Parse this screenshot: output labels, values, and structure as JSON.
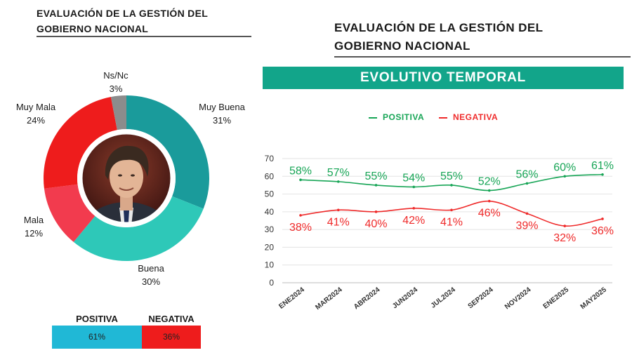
{
  "left_panel": {
    "title_line1": "EVALUACIÓN DE LA GESTIÓN DEL",
    "title_line2": "GOBIERNO NACIONAL",
    "donut": {
      "type": "pie",
      "slices": [
        {
          "label": "Muy Buena",
          "value": 31,
          "value_label": "31%",
          "color": "#1a9b9b"
        },
        {
          "label": "Buena",
          "value": 30,
          "value_label": "30%",
          "color": "#2ec8b8"
        },
        {
          "label": "Mala",
          "value": 12,
          "value_label": "12%",
          "color": "#f23b4e"
        },
        {
          "label": "Muy Mala",
          "value": 24,
          "value_label": "24%",
          "color": "#ee1c1c"
        },
        {
          "label": "Ns/Nc",
          "value": 3,
          "value_label": "3%",
          "color": "#8c8c8c"
        }
      ]
    },
    "summary": {
      "positiva_label": "POSITIVA",
      "positiva_value": "61%",
      "negativa_label": "NEGATIVA",
      "negativa_value": "36%",
      "positiva_color": "#20b8d6",
      "negativa_color": "#ee1c1c"
    }
  },
  "right_panel": {
    "title_line1": "EVALUACIÓN DE LA GESTIÓN DEL",
    "title_line2": "GOBIERNO NACIONAL",
    "banner": "EVOLUTIVO TEMPORAL"
  },
  "chart_data": {
    "type": "line",
    "categories": [
      "ENE2024",
      "MAR2024",
      "ABR2024",
      "JUN2024",
      "JUL2024",
      "SEP2024",
      "NOV2024",
      "ENE2025",
      "MAY2025"
    ],
    "series": [
      {
        "name": "POSITIVA",
        "values": [
          58,
          57,
          55,
          54,
          55,
          52,
          56,
          60,
          61
        ],
        "labels": [
          "58%",
          "57%",
          "55%",
          "54%",
          "55%",
          "52%",
          "56%",
          "60%",
          "61%"
        ],
        "color": "#17a556"
      },
      {
        "name": "NEGATIVA",
        "values": [
          38,
          41,
          40,
          42,
          41,
          46,
          39,
          32,
          36
        ],
        "labels": [
          "38%",
          "41%",
          "40%",
          "42%",
          "41%",
          "46%",
          "39%",
          "32%",
          "36%"
        ],
        "color": "#ef2a2a"
      }
    ],
    "ylim": [
      0,
      70
    ],
    "yticks": [
      "0",
      "10",
      "20",
      "30",
      "40",
      "50",
      "60",
      "70"
    ],
    "grid": true,
    "legend": "top"
  }
}
